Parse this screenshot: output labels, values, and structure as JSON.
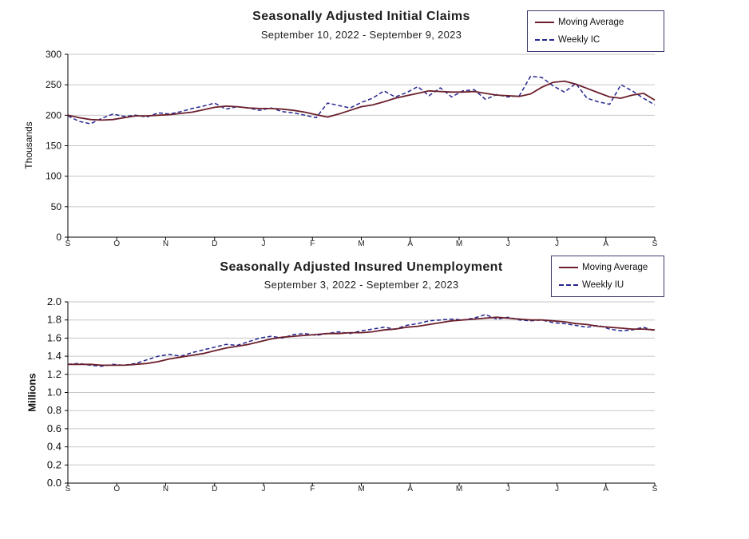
{
  "page": {
    "background": "#ffffff"
  },
  "chart_data": [
    {
      "name": "seasonally-adjusted-initial-claims",
      "type": "line",
      "title": "Seasonally Adjusted Initial Claims",
      "subtitle": "September 10, 2022 - September 9, 2023",
      "xlabel": "",
      "ylabel": "Thousands",
      "ylim": [
        0,
        300
      ],
      "y_ticks": [
        0,
        50,
        100,
        150,
        200,
        250,
        300
      ],
      "y_tick_labels": [
        "0",
        "50",
        "100",
        "150",
        "200",
        "250",
        "300"
      ],
      "x_tick_labels": [
        "S",
        "O",
        "N",
        "D",
        "J",
        "F",
        "M",
        "A",
        "M",
        "J",
        "J",
        "A",
        "S"
      ],
      "grid": "horizontal",
      "legend_position": "top-right",
      "axis_color": "#000000",
      "grid_color": "#c6c6c6",
      "series": [
        {
          "name": "Moving Average",
          "color": "#6b1f2b",
          "dash": "",
          "width": 1.8,
          "values": [
            200,
            196,
            193,
            192,
            193,
            196,
            199,
            199,
            200,
            201,
            203,
            205,
            209,
            213,
            215,
            214,
            212,
            211,
            211,
            210,
            208,
            205,
            201,
            197,
            202,
            208,
            214,
            217,
            222,
            228,
            232,
            236,
            240,
            239,
            238,
            238,
            239,
            236,
            233,
            232,
            231,
            235,
            246,
            254,
            256,
            251,
            244,
            237,
            230,
            228,
            233,
            236,
            225
          ]
        },
        {
          "name": "Weekly IC",
          "color": "#25258f",
          "dash": "5,3",
          "width": 1.5,
          "values": [
            199,
            190,
            186,
            195,
            202,
            198,
            200,
            197,
            204,
            202,
            206,
            211,
            215,
            220,
            210,
            214,
            212,
            208,
            212,
            206,
            204,
            200,
            196,
            220,
            216,
            212,
            221,
            228,
            240,
            230,
            237,
            247,
            232,
            245,
            230,
            240,
            242,
            226,
            234,
            230,
            232,
            264,
            262,
            248,
            238,
            252,
            228,
            222,
            218,
            250,
            240,
            228,
            217
          ]
        }
      ]
    },
    {
      "name": "seasonally-adjusted-insured-unemployment",
      "type": "line",
      "title": "Seasonally Adjusted Insured Unemployment",
      "subtitle": "September 3, 2022 - September 2, 2023",
      "xlabel": "",
      "ylabel": "Millions",
      "ylim": [
        0,
        2
      ],
      "y_ticks": [
        0,
        0.2,
        0.4,
        0.6,
        0.8,
        1.0,
        1.2,
        1.4,
        1.6,
        1.8,
        2.0
      ],
      "y_tick_labels": [
        "0.0",
        "0.2",
        "0.4",
        "0.6",
        "0.8",
        "1.0",
        "1.2",
        "1.4",
        "1.6",
        "1.8",
        "2.0"
      ],
      "x_tick_labels": [
        "S",
        "O",
        "N",
        "D",
        "J",
        "F",
        "M",
        "A",
        "M",
        "J",
        "J",
        "A",
        "S"
      ],
      "grid": "horizontal",
      "legend_position": "top-right",
      "axis_color": "#000000",
      "grid_color": "#c6c6c6",
      "series": [
        {
          "name": "Moving Average",
          "color": "#6b1f2b",
          "dash": "",
          "width": 1.8,
          "values": [
            1.31,
            1.31,
            1.31,
            1.3,
            1.3,
            1.3,
            1.31,
            1.32,
            1.34,
            1.37,
            1.39,
            1.41,
            1.43,
            1.46,
            1.49,
            1.51,
            1.53,
            1.56,
            1.59,
            1.61,
            1.62,
            1.63,
            1.64,
            1.65,
            1.65,
            1.66,
            1.66,
            1.67,
            1.69,
            1.7,
            1.72,
            1.73,
            1.75,
            1.77,
            1.79,
            1.8,
            1.81,
            1.82,
            1.83,
            1.82,
            1.81,
            1.8,
            1.8,
            1.79,
            1.78,
            1.76,
            1.75,
            1.73,
            1.72,
            1.71,
            1.7,
            1.7,
            1.69
          ]
        },
        {
          "name": "Weekly IU",
          "color": "#25258f",
          "dash": "5,3",
          "width": 1.5,
          "values": [
            1.31,
            1.32,
            1.3,
            1.29,
            1.31,
            1.3,
            1.32,
            1.36,
            1.4,
            1.42,
            1.4,
            1.44,
            1.47,
            1.5,
            1.53,
            1.52,
            1.56,
            1.6,
            1.62,
            1.6,
            1.64,
            1.65,
            1.63,
            1.65,
            1.67,
            1.65,
            1.68,
            1.7,
            1.72,
            1.7,
            1.74,
            1.76,
            1.79,
            1.8,
            1.81,
            1.8,
            1.82,
            1.86,
            1.81,
            1.83,
            1.8,
            1.79,
            1.8,
            1.77,
            1.76,
            1.74,
            1.72,
            1.74,
            1.7,
            1.68,
            1.69,
            1.72,
            1.68
          ]
        }
      ]
    }
  ]
}
